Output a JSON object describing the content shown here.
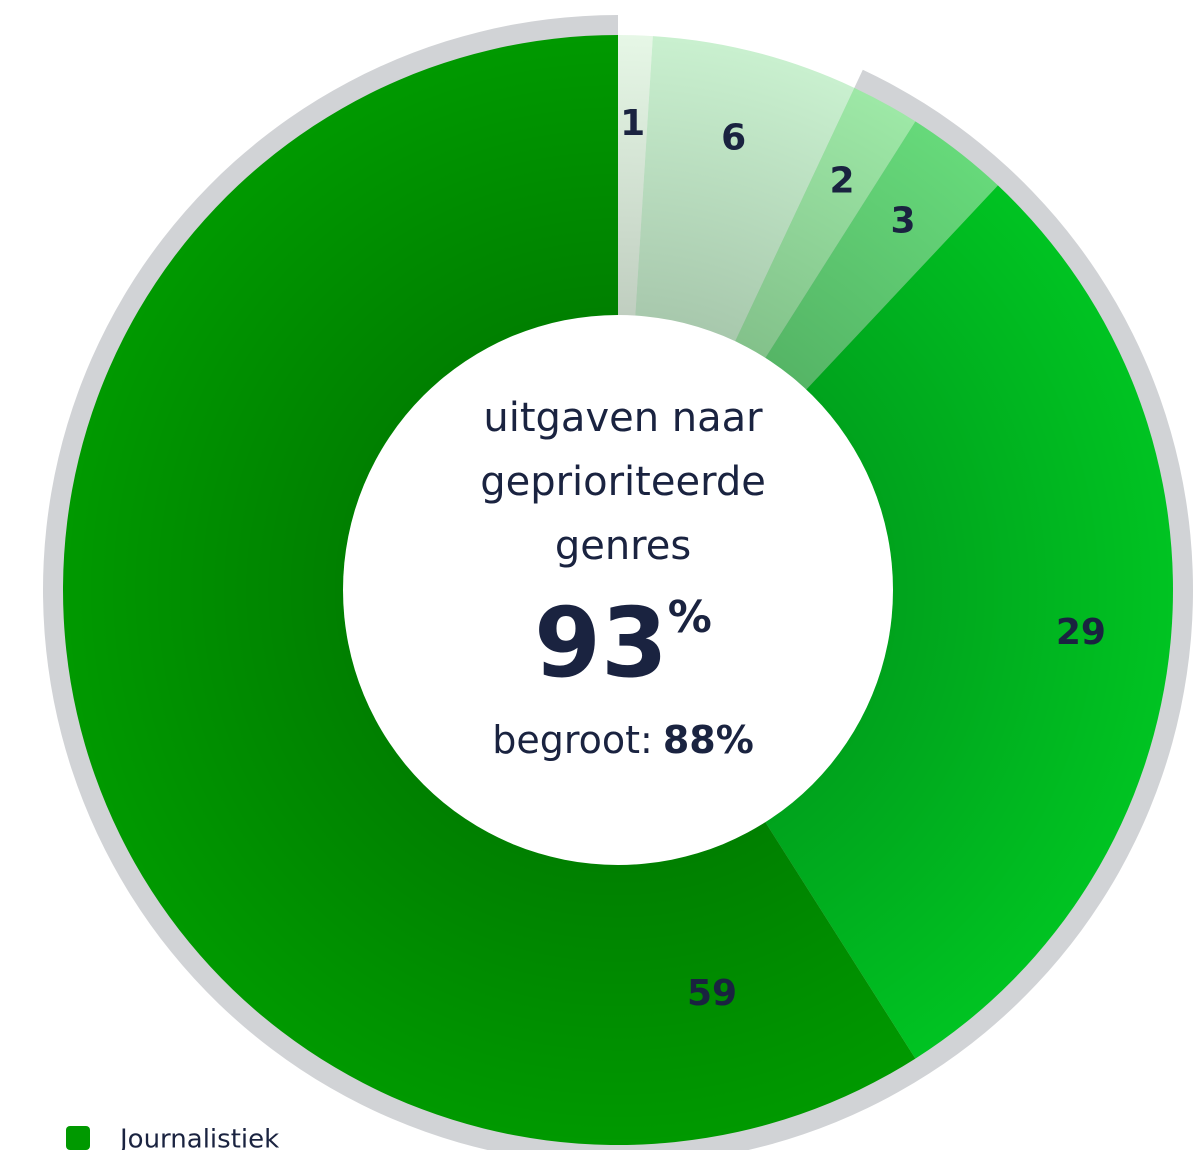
{
  "chart_data": {
    "type": "donut",
    "categories": [
      null,
      null,
      null,
      null,
      null,
      "Journalistiek"
    ],
    "values": [
      1,
      6,
      2,
      3,
      29,
      59
    ],
    "colors": [
      "#e6f7e6",
      "#c9f0cf",
      "#9de8a6",
      "#66d97a",
      "#00c322",
      "#009900"
    ],
    "center": {
      "lines": [
        "uitgaven naar",
        "geprioriteerde",
        "genres"
      ],
      "value": 93,
      "unit": "%",
      "budget_label": "begroot:",
      "budget_value": 88,
      "budget_value_label": "88%"
    },
    "ring_color": "#d1d3d6",
    "legend": true
  }
}
